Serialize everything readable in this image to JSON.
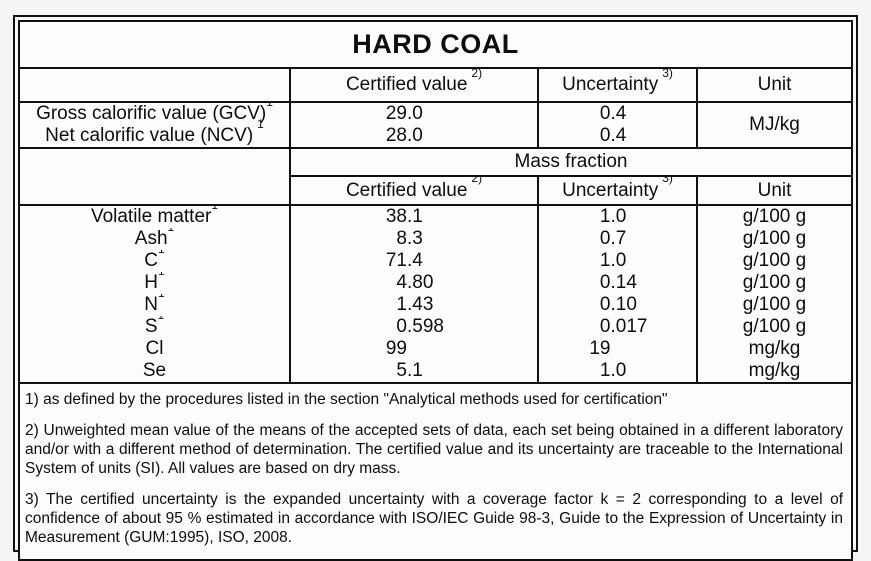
{
  "colors": {
    "page_bg": "#f5f5f6",
    "paper_bg": "#fdfdfd",
    "border": "#101010",
    "text": "#0d0d0d"
  },
  "title": "HARD COAL",
  "columns": {
    "certified": "Certified value",
    "certified_sup": "2)",
    "uncertainty": "Uncertainty",
    "uncertainty_sup": "3)",
    "unit": "Unit"
  },
  "calorific": {
    "rows": [
      {
        "label": "Gross calorific value (GCV)",
        "sup": "1",
        "value": "29.0",
        "uncertainty": "0.4"
      },
      {
        "label": "Net calorific value (NCV)",
        "sup": "1",
        "value": "28.0",
        "uncertainty": "0.4"
      }
    ],
    "unit": "MJ/kg"
  },
  "mass_fraction_header": "Mass fraction",
  "elements": [
    {
      "label": "Volatile matter",
      "sup": "1",
      "value": "38.1",
      "uncertainty": "1.0",
      "unit": "g/100 g"
    },
    {
      "label": "Ash",
      "sup": "1",
      "value": "8.3",
      "uncertainty": "0.7",
      "unit": "g/100 g"
    },
    {
      "label": "C",
      "sup": "1",
      "value": "71.4",
      "uncertainty": "1.0",
      "unit": "g/100 g"
    },
    {
      "label": "H",
      "sup": "1",
      "value": "4.80",
      "uncertainty": "0.14",
      "unit": "g/100 g"
    },
    {
      "label": "N",
      "sup": "1",
      "value": "1.43",
      "uncertainty": "0.10",
      "unit": "g/100 g"
    },
    {
      "label": "S",
      "sup": "1",
      "value": "0.598",
      "uncertainty": "0.017",
      "unit": "g/100 g"
    },
    {
      "label": "Cl",
      "sup": "",
      "value": "99",
      "uncertainty": "19",
      "unit": "mg/kg"
    },
    {
      "label": "Se",
      "sup": "",
      "value": "5.1",
      "uncertainty": "1.0",
      "unit": "mg/kg"
    }
  ],
  "footnotes": [
    "1) as defined by the procedures listed in the section \"Analytical methods used for certification\"",
    "2) Unweighted mean value of the means of the accepted sets of data, each set being obtained in a different laboratory and/or with a different method of determination. The certified value and its uncertainty are traceable to the International System of units (SI). All values are based on dry mass.",
    "3) The certified uncertainty is the expanded uncertainty with a coverage factor k = 2 corresponding to a level of confidence of about 95 % estimated in accordance with ISO/IEC Guide 98-3, Guide to the Expression of Uncertainty in Measurement (GUM:1995), ISO, 2008."
  ]
}
